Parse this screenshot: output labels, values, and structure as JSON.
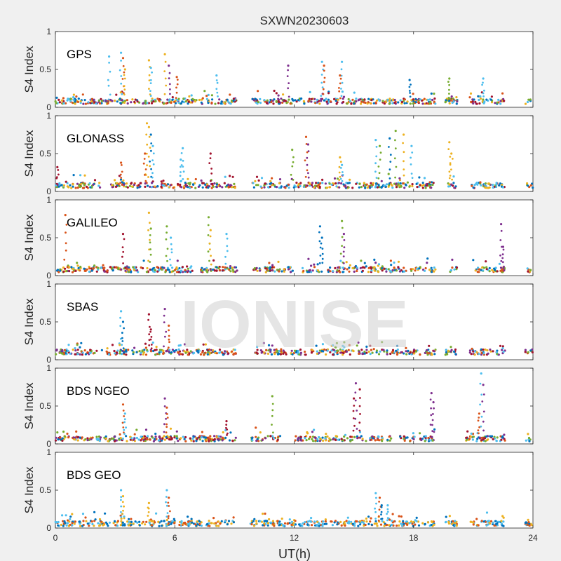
{
  "figure": {
    "title": "SXWN20230603",
    "xlabel": "UT(h)",
    "watermark": "IONISE",
    "background": "#f0f0f0",
    "axes_background": "#ffffff"
  },
  "chart_data": [
    {
      "type": "scatter",
      "panel_label": "GPS",
      "ylabel": "S4 Index",
      "xlim": [
        0,
        24
      ],
      "ylim": [
        0,
        1
      ],
      "xticks": [
        0,
        6,
        12,
        18,
        24
      ],
      "yticks": [
        0,
        0.5,
        1
      ],
      "grid": false,
      "baseline": 0.08,
      "data_gaps": [
        [
          9.1,
          9.9
        ],
        [
          19.1,
          19.6
        ],
        [
          20.2,
          20.8
        ],
        [
          22.6,
          23.6
        ]
      ],
      "burst_points": [
        {
          "x": 2.7,
          "y": 0.67
        },
        {
          "x": 3.3,
          "y": 0.72
        },
        {
          "x": 3.4,
          "y": 0.65
        },
        {
          "x": 3.5,
          "y": 0.5
        },
        {
          "x": 4.7,
          "y": 0.62
        },
        {
          "x": 4.8,
          "y": 0.52
        },
        {
          "x": 5.5,
          "y": 0.7
        },
        {
          "x": 5.7,
          "y": 0.55
        },
        {
          "x": 6.1,
          "y": 0.4
        },
        {
          "x": 8.1,
          "y": 0.42
        },
        {
          "x": 11.7,
          "y": 0.55
        },
        {
          "x": 13.4,
          "y": 0.6
        },
        {
          "x": 13.5,
          "y": 0.55
        },
        {
          "x": 14.4,
          "y": 0.6
        },
        {
          "x": 14.3,
          "y": 0.42
        },
        {
          "x": 17.8,
          "y": 0.36
        },
        {
          "x": 19.8,
          "y": 0.38
        },
        {
          "x": 21.5,
          "y": 0.38
        }
      ],
      "series": [
        {
          "color": "#0072bd"
        },
        {
          "color": "#d95319"
        },
        {
          "color": "#edb120"
        },
        {
          "color": "#7e2f8e"
        },
        {
          "color": "#77ac30"
        },
        {
          "color": "#4dbeee"
        },
        {
          "color": "#a2142f"
        }
      ]
    },
    {
      "type": "scatter",
      "panel_label": "GLONASS",
      "ylabel": "S4 Index",
      "xlim": [
        0,
        24
      ],
      "ylim": [
        0,
        1
      ],
      "xticks": [
        0,
        6,
        12,
        18,
        24
      ],
      "yticks": [
        0,
        0.5,
        1
      ],
      "grid": false,
      "baseline": 0.08,
      "data_gaps": [
        [
          2.3,
          2.8
        ],
        [
          9.1,
          9.9
        ],
        [
          19.1,
          19.7
        ],
        [
          20.2,
          20.9
        ],
        [
          22.6,
          23.7
        ]
      ],
      "burst_points": [
        {
          "x": 0.1,
          "y": 0.32
        },
        {
          "x": 3.3,
          "y": 0.38
        },
        {
          "x": 4.6,
          "y": 0.9
        },
        {
          "x": 4.7,
          "y": 0.85
        },
        {
          "x": 4.8,
          "y": 0.75
        },
        {
          "x": 4.9,
          "y": 0.6
        },
        {
          "x": 4.5,
          "y": 0.5
        },
        {
          "x": 6.4,
          "y": 0.57
        },
        {
          "x": 6.3,
          "y": 0.42
        },
        {
          "x": 7.8,
          "y": 0.5
        },
        {
          "x": 11.9,
          "y": 0.55
        },
        {
          "x": 12.6,
          "y": 0.72
        },
        {
          "x": 12.7,
          "y": 0.62
        },
        {
          "x": 14.3,
          "y": 0.45
        },
        {
          "x": 14.4,
          "y": 0.35
        },
        {
          "x": 16.1,
          "y": 0.68
        },
        {
          "x": 16.3,
          "y": 0.6
        },
        {
          "x": 16.8,
          "y": 0.7
        },
        {
          "x": 17.1,
          "y": 0.8
        },
        {
          "x": 17.5,
          "y": 0.75
        },
        {
          "x": 17.9,
          "y": 0.6
        },
        {
          "x": 19.8,
          "y": 0.65
        },
        {
          "x": 19.9,
          "y": 0.5
        }
      ],
      "series": [
        {
          "color": "#0072bd"
        },
        {
          "color": "#d95319"
        },
        {
          "color": "#edb120"
        },
        {
          "color": "#7e2f8e"
        },
        {
          "color": "#77ac30"
        },
        {
          "color": "#4dbeee"
        },
        {
          "color": "#a2142f"
        }
      ]
    },
    {
      "type": "scatter",
      "panel_label": "GALILEO",
      "ylabel": "S4 Index",
      "xlim": [
        0,
        24
      ],
      "ylim": [
        0,
        1
      ],
      "xticks": [
        0,
        6,
        12,
        18,
        24
      ],
      "yticks": [
        0,
        0.5,
        1
      ],
      "grid": false,
      "baseline": 0.08,
      "data_gaps": [
        [
          6.9,
          7.3
        ],
        [
          9.2,
          9.9
        ],
        [
          12.0,
          12.4
        ],
        [
          19.1,
          19.7
        ],
        [
          20.2,
          20.9
        ],
        [
          22.6,
          23.7
        ]
      ],
      "burst_points": [
        {
          "x": 0.5,
          "y": 0.8
        },
        {
          "x": 3.4,
          "y": 0.55
        },
        {
          "x": 4.7,
          "y": 0.83
        },
        {
          "x": 4.8,
          "y": 0.62
        },
        {
          "x": 5.6,
          "y": 0.65
        },
        {
          "x": 5.8,
          "y": 0.5
        },
        {
          "x": 7.7,
          "y": 0.77
        },
        {
          "x": 7.8,
          "y": 0.6
        },
        {
          "x": 8.6,
          "y": 0.55
        },
        {
          "x": 13.3,
          "y": 0.65
        },
        {
          "x": 13.4,
          "y": 0.5
        },
        {
          "x": 14.4,
          "y": 0.72
        },
        {
          "x": 14.5,
          "y": 0.55
        },
        {
          "x": 22.4,
          "y": 0.68
        },
        {
          "x": 22.5,
          "y": 0.38
        }
      ],
      "series": [
        {
          "color": "#0072bd"
        },
        {
          "color": "#d95319"
        },
        {
          "color": "#edb120"
        },
        {
          "color": "#7e2f8e"
        },
        {
          "color": "#77ac30"
        },
        {
          "color": "#4dbeee"
        },
        {
          "color": "#a2142f"
        }
      ]
    },
    {
      "type": "scatter",
      "panel_label": "SBAS",
      "ylabel": "S4 Index",
      "xlim": [
        0,
        24
      ],
      "ylim": [
        0,
        1
      ],
      "xticks": [
        0,
        6,
        12,
        18,
        24
      ],
      "yticks": [
        0,
        0.5,
        1
      ],
      "grid": false,
      "baseline": 0.1,
      "data_gaps": [
        [
          9.1,
          9.9
        ],
        [
          19.1,
          19.6
        ],
        [
          20.2,
          20.8
        ],
        [
          22.6,
          23.6
        ]
      ],
      "burst_points": [
        {
          "x": 3.3,
          "y": 0.64
        },
        {
          "x": 3.4,
          "y": 0.5
        },
        {
          "x": 4.7,
          "y": 0.6
        },
        {
          "x": 4.8,
          "y": 0.4
        },
        {
          "x": 5.5,
          "y": 0.67
        },
        {
          "x": 5.7,
          "y": 0.45
        }
      ],
      "series": [
        {
          "color": "#0072bd"
        },
        {
          "color": "#d95319"
        },
        {
          "color": "#edb120"
        },
        {
          "color": "#7e2f8e"
        },
        {
          "color": "#77ac30"
        },
        {
          "color": "#4dbeee"
        },
        {
          "color": "#a2142f"
        }
      ]
    },
    {
      "type": "scatter",
      "panel_label": "BDS NGEO",
      "ylabel": "S4 Index",
      "xlim": [
        0,
        24
      ],
      "ylim": [
        0,
        1
      ],
      "xticks": [
        0,
        6,
        12,
        18,
        24
      ],
      "yticks": [
        0,
        0.5,
        1
      ],
      "grid": false,
      "baseline": 0.07,
      "data_gaps": [
        [
          9.1,
          9.8
        ],
        [
          11.3,
          12.0
        ],
        [
          16.9,
          17.3
        ],
        [
          19.1,
          20.6
        ],
        [
          22.6,
          23.6
        ]
      ],
      "burst_points": [
        {
          "x": 3.4,
          "y": 0.52
        },
        {
          "x": 3.5,
          "y": 0.4
        },
        {
          "x": 5.5,
          "y": 0.6
        },
        {
          "x": 5.6,
          "y": 0.48
        },
        {
          "x": 8.6,
          "y": 0.3
        },
        {
          "x": 10.9,
          "y": 0.63
        },
        {
          "x": 15.1,
          "y": 0.8
        },
        {
          "x": 15.0,
          "y": 0.6
        },
        {
          "x": 15.3,
          "y": 0.72
        },
        {
          "x": 18.9,
          "y": 0.67
        },
        {
          "x": 19.0,
          "y": 0.55
        },
        {
          "x": 21.4,
          "y": 0.93
        },
        {
          "x": 21.5,
          "y": 0.78
        },
        {
          "x": 21.3,
          "y": 0.4
        }
      ],
      "series": [
        {
          "color": "#0072bd"
        },
        {
          "color": "#d95319"
        },
        {
          "color": "#edb120"
        },
        {
          "color": "#7e2f8e"
        },
        {
          "color": "#77ac30"
        },
        {
          "color": "#4dbeee"
        },
        {
          "color": "#a2142f"
        }
      ]
    },
    {
      "type": "scatter",
      "panel_label": "BDS GEO",
      "ylabel": "S4 Index",
      "xlim": [
        0,
        24
      ],
      "ylim": [
        0,
        1
      ],
      "xticks": [
        0,
        6,
        12,
        18,
        24
      ],
      "yticks": [
        0,
        0.5,
        1
      ],
      "grid": false,
      "baseline": 0.06,
      "data_gaps": [
        [
          9.1,
          9.8
        ],
        [
          19.1,
          19.6
        ],
        [
          20.2,
          20.8
        ],
        [
          22.6,
          23.6
        ]
      ],
      "burst_points": [
        {
          "x": 3.3,
          "y": 0.5
        },
        {
          "x": 3.4,
          "y": 0.42
        },
        {
          "x": 4.7,
          "y": 0.33
        },
        {
          "x": 5.6,
          "y": 0.5
        },
        {
          "x": 5.7,
          "y": 0.4
        },
        {
          "x": 16.1,
          "y": 0.46
        },
        {
          "x": 16.3,
          "y": 0.4
        },
        {
          "x": 16.4,
          "y": 0.3
        },
        {
          "x": 16.7,
          "y": 0.3
        }
      ],
      "series": [
        {
          "color": "#0072bd"
        },
        {
          "color": "#edb120"
        },
        {
          "color": "#d95319"
        },
        {
          "color": "#4dbeee"
        }
      ]
    }
  ]
}
